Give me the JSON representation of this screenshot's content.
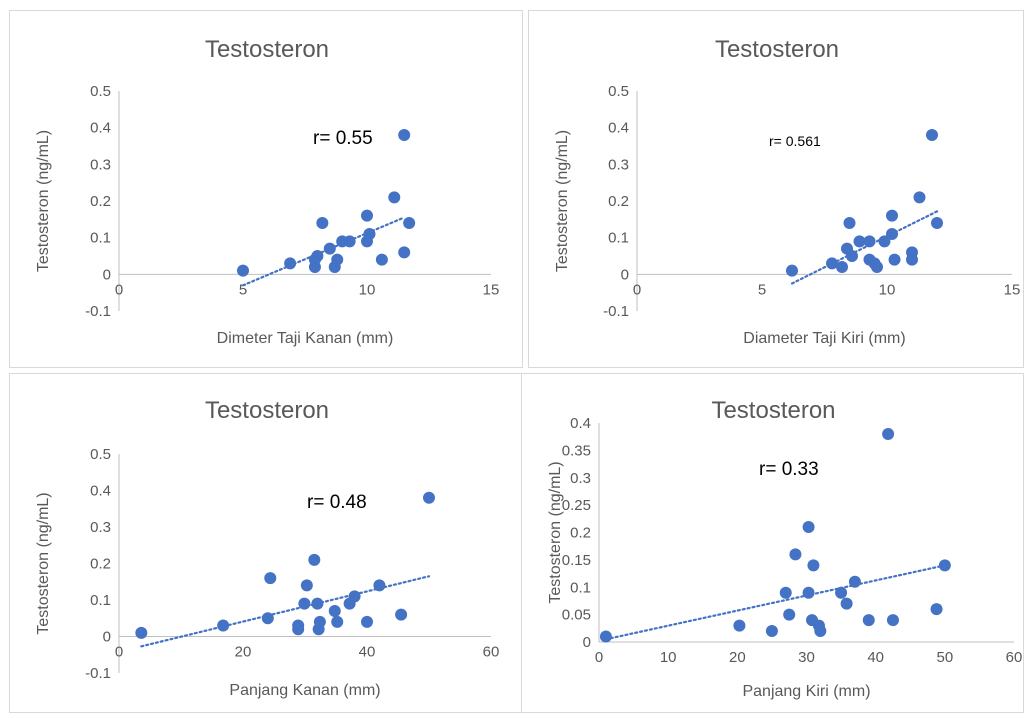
{
  "colors": {
    "marker": "#4472c4",
    "trendline": "#4472c4",
    "axis": "#bfbfbf",
    "text": "#595959"
  },
  "chart_data": [
    {
      "type": "scatter",
      "title": "Testosteron",
      "xlabel": "Dimeter Taji Kanan (mm)",
      "ylabel": "Testosteron (ng/mL)",
      "xlim": [
        0,
        15
      ],
      "ylim": [
        -0.1,
        0.5
      ],
      "x_ticks": [
        0,
        5,
        10,
        15
      ],
      "y_ticks": [
        -0.1,
        0,
        0.1,
        0.2,
        0.3,
        0.4,
        0.5
      ],
      "tick_labels_x": [
        "0",
        "5",
        "10",
        "15"
      ],
      "tick_labels_y": [
        "-0.1",
        "0",
        "0.1",
        "0.2",
        "0.3",
        "0.4",
        "0.5"
      ],
      "annotation": "r= 0.55",
      "trendline": {
        "type": "linear",
        "x": [
          5,
          11.5
        ],
        "y": [
          -0.03,
          0.155
        ]
      },
      "points": [
        {
          "x": 5.0,
          "y": 0.01
        },
        {
          "x": 6.9,
          "y": 0.03
        },
        {
          "x": 7.9,
          "y": 0.02
        },
        {
          "x": 7.9,
          "y": 0.04
        },
        {
          "x": 8.0,
          "y": 0.05
        },
        {
          "x": 8.2,
          "y": 0.14
        },
        {
          "x": 8.5,
          "y": 0.07
        },
        {
          "x": 8.7,
          "y": 0.02
        },
        {
          "x": 8.8,
          "y": 0.04
        },
        {
          "x": 9.0,
          "y": 0.09
        },
        {
          "x": 9.3,
          "y": 0.09
        },
        {
          "x": 10.0,
          "y": 0.09
        },
        {
          "x": 10.0,
          "y": 0.16
        },
        {
          "x": 10.1,
          "y": 0.11
        },
        {
          "x": 10.6,
          "y": 0.04
        },
        {
          "x": 11.1,
          "y": 0.21
        },
        {
          "x": 11.5,
          "y": 0.38
        },
        {
          "x": 11.5,
          "y": 0.06
        },
        {
          "x": 11.7,
          "y": 0.14
        }
      ]
    },
    {
      "type": "scatter",
      "title": "Testosteron",
      "xlabel": "Diameter Taji Kiri (mm)",
      "ylabel": "Testosteron (ng/mL)",
      "xlim": [
        0,
        15
      ],
      "ylim": [
        -0.1,
        0.5
      ],
      "x_ticks": [
        0,
        5,
        10,
        15
      ],
      "y_ticks": [
        -0.1,
        0,
        0.1,
        0.2,
        0.3,
        0.4,
        0.5
      ],
      "tick_labels_x": [
        "0",
        "5",
        "10",
        "15"
      ],
      "tick_labels_y": [
        "-0.1",
        "0",
        "0.1",
        "0.2",
        "0.3",
        "0.4",
        "0.5"
      ],
      "annotation": "r= 0.561",
      "trendline": {
        "type": "linear",
        "x": [
          6.2,
          12.1
        ],
        "y": [
          -0.025,
          0.175
        ]
      },
      "points": [
        {
          "x": 6.2,
          "y": 0.01
        },
        {
          "x": 7.8,
          "y": 0.03
        },
        {
          "x": 8.2,
          "y": 0.02
        },
        {
          "x": 8.4,
          "y": 0.07
        },
        {
          "x": 8.5,
          "y": 0.14
        },
        {
          "x": 8.6,
          "y": 0.05
        },
        {
          "x": 8.9,
          "y": 0.09
        },
        {
          "x": 9.3,
          "y": 0.09
        },
        {
          "x": 9.3,
          "y": 0.04
        },
        {
          "x": 9.5,
          "y": 0.03
        },
        {
          "x": 9.6,
          "y": 0.02
        },
        {
          "x": 9.9,
          "y": 0.09
        },
        {
          "x": 10.2,
          "y": 0.16
        },
        {
          "x": 10.2,
          "y": 0.11
        },
        {
          "x": 10.3,
          "y": 0.04
        },
        {
          "x": 11.0,
          "y": 0.06
        },
        {
          "x": 11.0,
          "y": 0.04
        },
        {
          "x": 11.3,
          "y": 0.21
        },
        {
          "x": 11.8,
          "y": 0.38
        },
        {
          "x": 12.0,
          "y": 0.14
        }
      ]
    },
    {
      "type": "scatter",
      "title": "Testosteron",
      "xlabel": "Panjang Kanan (mm)",
      "ylabel": "Testosteron (ng/mL)",
      "xlim": [
        0,
        60
      ],
      "ylim": [
        -0.1,
        0.5
      ],
      "x_ticks": [
        0,
        20,
        40,
        60
      ],
      "y_ticks": [
        -0.1,
        0,
        0.1,
        0.2,
        0.3,
        0.4,
        0.5
      ],
      "tick_labels_x": [
        "0",
        "20",
        "40",
        "60"
      ],
      "tick_labels_y": [
        "-0.1",
        "0",
        "0.1",
        "0.2",
        "0.3",
        "0.4",
        "0.5"
      ],
      "annotation": "r= 0.48",
      "trendline": {
        "type": "linear",
        "x": [
          3.6,
          50
        ],
        "y": [
          -0.027,
          0.165
        ]
      },
      "points": [
        {
          "x": 3.6,
          "y": 0.01
        },
        {
          "x": 16.8,
          "y": 0.03
        },
        {
          "x": 24.0,
          "y": 0.05
        },
        {
          "x": 24.4,
          "y": 0.16
        },
        {
          "x": 28.9,
          "y": 0.02
        },
        {
          "x": 28.9,
          "y": 0.03
        },
        {
          "x": 29.9,
          "y": 0.09
        },
        {
          "x": 30.3,
          "y": 0.14
        },
        {
          "x": 31.5,
          "y": 0.21
        },
        {
          "x": 32.0,
          "y": 0.09
        },
        {
          "x": 32.2,
          "y": 0.02
        },
        {
          "x": 32.4,
          "y": 0.04
        },
        {
          "x": 34.8,
          "y": 0.07
        },
        {
          "x": 35.2,
          "y": 0.04
        },
        {
          "x": 37.2,
          "y": 0.09
        },
        {
          "x": 38.0,
          "y": 0.11
        },
        {
          "x": 40.0,
          "y": 0.04
        },
        {
          "x": 42.0,
          "y": 0.14
        },
        {
          "x": 45.5,
          "y": 0.06
        },
        {
          "x": 50.0,
          "y": 0.38
        }
      ]
    },
    {
      "type": "scatter",
      "title": "Testosteron",
      "xlabel": "Panjang Kiri (mm)",
      "ylabel": "Testosteron (ng/mL)",
      "xlim": [
        0,
        60
      ],
      "ylim": [
        0,
        0.4
      ],
      "x_ticks": [
        0,
        10,
        20,
        30,
        40,
        50,
        60
      ],
      "y_ticks": [
        0,
        0.05,
        0.1,
        0.15,
        0.2,
        0.25,
        0.3,
        0.35,
        0.4
      ],
      "tick_labels_x": [
        "0",
        "10",
        "20",
        "30",
        "40",
        "50",
        "60"
      ],
      "tick_labels_y": [
        "0",
        "0.05",
        "0.1",
        "0.15",
        "0.2",
        "0.25",
        "0.3",
        "0.35",
        "0.4"
      ],
      "annotation": "r= 0.33",
      "trendline": {
        "type": "linear",
        "x": [
          1,
          50
        ],
        "y": [
          0.005,
          0.14
        ]
      },
      "points": [
        {
          "x": 1.0,
          "y": 0.01
        },
        {
          "x": 20.3,
          "y": 0.03
        },
        {
          "x": 25.0,
          "y": 0.02
        },
        {
          "x": 27.0,
          "y": 0.09
        },
        {
          "x": 27.5,
          "y": 0.05
        },
        {
          "x": 28.4,
          "y": 0.16
        },
        {
          "x": 30.3,
          "y": 0.21
        },
        {
          "x": 30.3,
          "y": 0.09
        },
        {
          "x": 30.8,
          "y": 0.04
        },
        {
          "x": 31.0,
          "y": 0.14
        },
        {
          "x": 31.8,
          "y": 0.03
        },
        {
          "x": 32.0,
          "y": 0.02
        },
        {
          "x": 35.0,
          "y": 0.09
        },
        {
          "x": 35.8,
          "y": 0.07
        },
        {
          "x": 37.0,
          "y": 0.11
        },
        {
          "x": 39.0,
          "y": 0.04
        },
        {
          "x": 41.8,
          "y": 0.38
        },
        {
          "x": 42.5,
          "y": 0.04
        },
        {
          "x": 48.8,
          "y": 0.06
        },
        {
          "x": 50.0,
          "y": 0.14
        }
      ]
    }
  ]
}
